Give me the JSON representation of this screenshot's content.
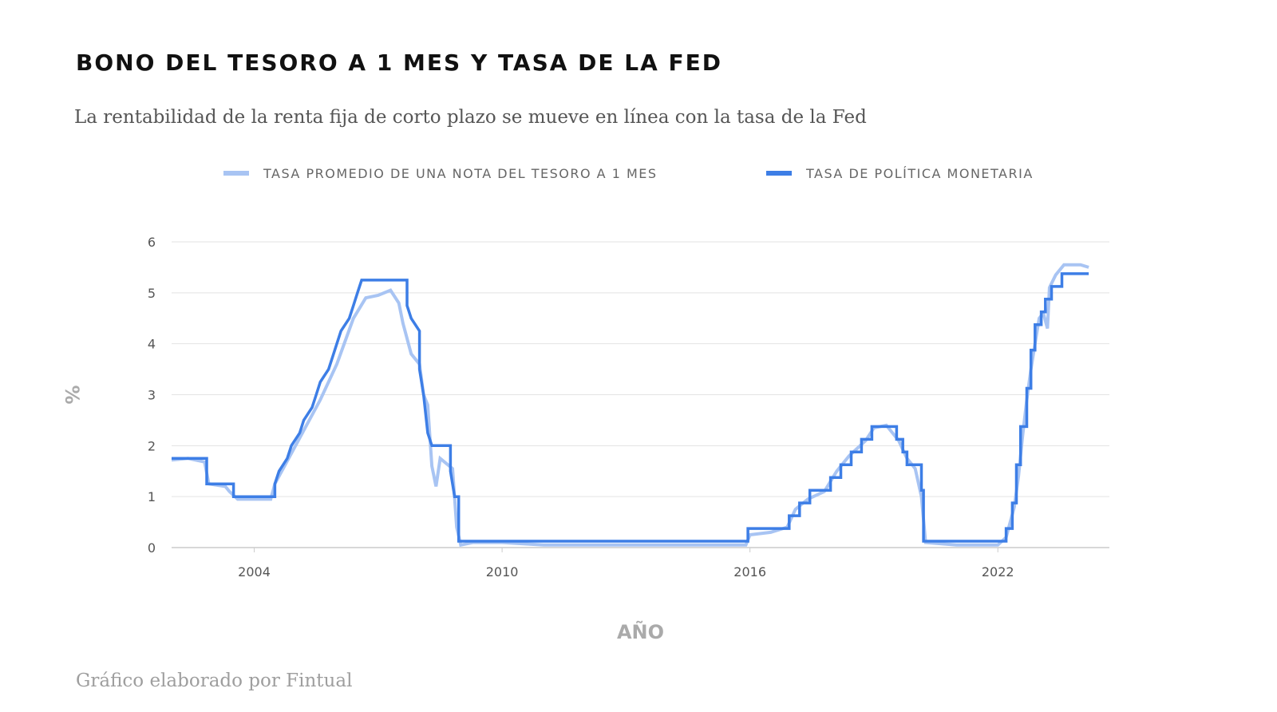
{
  "header": {
    "title": "BONO DEL TESORO A 1 MES Y TASA DE LA FED",
    "subtitle": "La rentabilidad de la renta fija de corto plazo se mueve en línea con la tasa de la Fed"
  },
  "footer": {
    "credit": "Gráfico elaborado por Fintual"
  },
  "chart_data": {
    "type": "line",
    "title": "BONO DEL TESORO A 1 MES Y TASA DE LA FED",
    "subtitle": "La rentabilidad de la renta fija de corto plazo se mueve en línea con la tasa de la Fed",
    "xlabel": "AÑO",
    "ylabel": "%",
    "xlim": [
      2002.0,
      2024.7
    ],
    "ylim": [
      0,
      6
    ],
    "xticks": [
      2004,
      2010,
      2016,
      2022
    ],
    "yticks": [
      0,
      1,
      2,
      3,
      4,
      5,
      6
    ],
    "grid": true,
    "legend_position": "top",
    "series": [
      {
        "name": "TASA PROMEDIO DE UNA NOTA DEL TESORO A 1 MES",
        "color": "#a8c4f3",
        "points": [
          [
            2002.0,
            1.72
          ],
          [
            2002.4,
            1.75
          ],
          [
            2002.8,
            1.68
          ],
          [
            2002.9,
            1.25
          ],
          [
            2003.3,
            1.2
          ],
          [
            2003.4,
            1.1
          ],
          [
            2003.6,
            0.95
          ],
          [
            2004.0,
            0.95
          ],
          [
            2004.4,
            0.95
          ],
          [
            2004.5,
            1.25
          ],
          [
            2004.8,
            1.7
          ],
          [
            2005.2,
            2.3
          ],
          [
            2005.6,
            2.9
          ],
          [
            2006.0,
            3.6
          ],
          [
            2006.4,
            4.5
          ],
          [
            2006.7,
            4.9
          ],
          [
            2007.0,
            4.95
          ],
          [
            2007.3,
            5.05
          ],
          [
            2007.5,
            4.8
          ],
          [
            2007.6,
            4.4
          ],
          [
            2007.8,
            3.8
          ],
          [
            2008.0,
            3.6
          ],
          [
            2008.1,
            3.0
          ],
          [
            2008.2,
            2.8
          ],
          [
            2008.3,
            1.6
          ],
          [
            2008.4,
            1.2
          ],
          [
            2008.5,
            1.75
          ],
          [
            2008.8,
            1.55
          ],
          [
            2008.9,
            0.4
          ],
          [
            2009.0,
            0.05
          ],
          [
            2009.3,
            0.1
          ],
          [
            2010.0,
            0.1
          ],
          [
            2011.0,
            0.05
          ],
          [
            2013.0,
            0.05
          ],
          [
            2015.9,
            0.05
          ],
          [
            2016.0,
            0.25
          ],
          [
            2016.5,
            0.3
          ],
          [
            2016.9,
            0.4
          ],
          [
            2017.1,
            0.75
          ],
          [
            2017.4,
            0.95
          ],
          [
            2017.8,
            1.1
          ],
          [
            2018.1,
            1.5
          ],
          [
            2018.4,
            1.8
          ],
          [
            2018.8,
            2.1
          ],
          [
            2019.0,
            2.35
          ],
          [
            2019.3,
            2.4
          ],
          [
            2019.6,
            2.1
          ],
          [
            2019.8,
            1.75
          ],
          [
            2020.0,
            1.55
          ],
          [
            2020.15,
            1.0
          ],
          [
            2020.25,
            0.1
          ],
          [
            2021.0,
            0.05
          ],
          [
            2022.0,
            0.05
          ],
          [
            2022.2,
            0.2
          ],
          [
            2022.4,
            0.8
          ],
          [
            2022.5,
            1.4
          ],
          [
            2022.6,
            2.2
          ],
          [
            2022.7,
            2.9
          ],
          [
            2022.8,
            3.5
          ],
          [
            2022.9,
            4.0
          ],
          [
            2023.0,
            4.5
          ],
          [
            2023.1,
            4.6
          ],
          [
            2023.2,
            4.3
          ],
          [
            2023.25,
            5.1
          ],
          [
            2023.4,
            5.35
          ],
          [
            2023.6,
            5.55
          ],
          [
            2024.0,
            5.55
          ],
          [
            2024.2,
            5.5
          ]
        ]
      },
      {
        "name": "TASA DE POLÍTICA MONETARIA",
        "color": "#3d7ee6",
        "points": [
          [
            2002.0,
            1.75
          ],
          [
            2002.85,
            1.75
          ],
          [
            2002.85,
            1.25
          ],
          [
            2003.5,
            1.25
          ],
          [
            2003.5,
            1.0
          ],
          [
            2004.5,
            1.0
          ],
          [
            2004.5,
            1.25
          ],
          [
            2004.6,
            1.5
          ],
          [
            2004.8,
            1.75
          ],
          [
            2004.9,
            2.0
          ],
          [
            2005.1,
            2.25
          ],
          [
            2005.2,
            2.5
          ],
          [
            2005.4,
            2.75
          ],
          [
            2005.5,
            3.0
          ],
          [
            2005.6,
            3.25
          ],
          [
            2005.8,
            3.5
          ],
          [
            2005.9,
            3.75
          ],
          [
            2006.0,
            4.0
          ],
          [
            2006.1,
            4.25
          ],
          [
            2006.3,
            4.5
          ],
          [
            2006.4,
            4.75
          ],
          [
            2006.5,
            5.0
          ],
          [
            2006.6,
            5.25
          ],
          [
            2007.7,
            5.25
          ],
          [
            2007.7,
            4.75
          ],
          [
            2007.8,
            4.5
          ],
          [
            2008.0,
            4.25
          ],
          [
            2008.0,
            3.5
          ],
          [
            2008.1,
            3.0
          ],
          [
            2008.2,
            2.25
          ],
          [
            2008.3,
            2.0
          ],
          [
            2008.75,
            2.0
          ],
          [
            2008.75,
            1.5
          ],
          [
            2008.85,
            1.0
          ],
          [
            2008.95,
            1.0
          ],
          [
            2008.95,
            0.125
          ],
          [
            2015.95,
            0.125
          ],
          [
            2015.95,
            0.375
          ],
          [
            2016.95,
            0.375
          ],
          [
            2016.95,
            0.625
          ],
          [
            2017.2,
            0.625
          ],
          [
            2017.2,
            0.875
          ],
          [
            2017.45,
            0.875
          ],
          [
            2017.45,
            1.125
          ],
          [
            2017.95,
            1.125
          ],
          [
            2017.95,
            1.375
          ],
          [
            2018.2,
            1.375
          ],
          [
            2018.2,
            1.625
          ],
          [
            2018.45,
            1.625
          ],
          [
            2018.45,
            1.875
          ],
          [
            2018.7,
            1.875
          ],
          [
            2018.7,
            2.125
          ],
          [
            2018.95,
            2.125
          ],
          [
            2018.95,
            2.375
          ],
          [
            2019.55,
            2.375
          ],
          [
            2019.55,
            2.125
          ],
          [
            2019.7,
            2.125
          ],
          [
            2019.7,
            1.875
          ],
          [
            2019.8,
            1.875
          ],
          [
            2019.8,
            1.625
          ],
          [
            2020.15,
            1.625
          ],
          [
            2020.15,
            1.125
          ],
          [
            2020.2,
            1.125
          ],
          [
            2020.2,
            0.125
          ],
          [
            2022.2,
            0.125
          ],
          [
            2022.2,
            0.375
          ],
          [
            2022.35,
            0.375
          ],
          [
            2022.35,
            0.875
          ],
          [
            2022.45,
            0.875
          ],
          [
            2022.45,
            1.625
          ],
          [
            2022.55,
            1.625
          ],
          [
            2022.55,
            2.375
          ],
          [
            2022.7,
            2.375
          ],
          [
            2022.7,
            3.125
          ],
          [
            2022.8,
            3.125
          ],
          [
            2022.8,
            3.875
          ],
          [
            2022.9,
            3.875
          ],
          [
            2022.9,
            4.375
          ],
          [
            2023.05,
            4.375
          ],
          [
            2023.05,
            4.625
          ],
          [
            2023.15,
            4.625
          ],
          [
            2023.15,
            4.875
          ],
          [
            2023.3,
            4.875
          ],
          [
            2023.3,
            5.125
          ],
          [
            2023.55,
            5.125
          ],
          [
            2023.55,
            5.375
          ],
          [
            2024.2,
            5.375
          ]
        ]
      }
    ]
  }
}
